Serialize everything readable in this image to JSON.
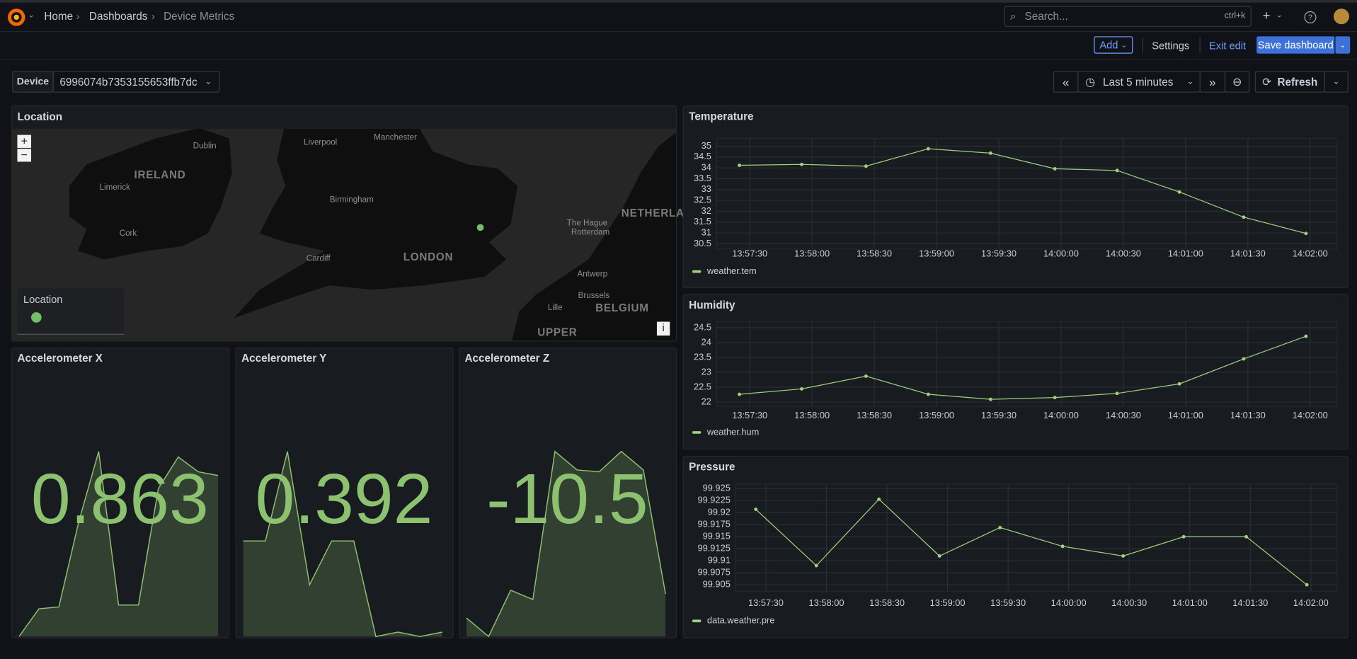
{
  "header": {
    "breadcrumbs": [
      "Home",
      "Dashboards",
      "Device Metrics"
    ],
    "search_placeholder": "Search...",
    "shortcut": "ctrl+k"
  },
  "toolbar": {
    "add": "Add",
    "settings": "Settings",
    "exit_edit": "Exit edit",
    "save": "Save dashboard"
  },
  "variables": {
    "label": "Device",
    "value": "6996074b7353155653ffb7dc"
  },
  "time_picker": {
    "range": "Last 5 minutes",
    "refresh": "Refresh"
  },
  "map_panel": {
    "title": "Location",
    "labels": [
      "Dublin",
      "IRELAND",
      "Liverpool",
      "Manchester",
      "Limerick",
      "Birmingham",
      "Cork",
      "Cardiff",
      "LONDON",
      "The Hague",
      "Rotterdam",
      "NETHERLA",
      "Antwerp",
      "Brussels",
      "Lille",
      "BELGIUM",
      "UPPER"
    ],
    "zoom_in": "+",
    "zoom_out": "−",
    "info": "i",
    "legend_title": "Location"
  },
  "stat_panels": [
    {
      "title": "Accelerometer X",
      "value": 0.863,
      "sparkline": [
        0.2,
        0.35,
        0.36,
        0.82,
        1.2,
        0.37,
        0.37,
        1.0,
        1.17,
        1.09,
        1.07
      ]
    },
    {
      "title": "Accelerometer Y",
      "value": 0.392,
      "sparkline": [
        0.85,
        0.85,
        1.3,
        0.63,
        0.85,
        0.85,
        0.37,
        0.392,
        0.37,
        0.392
      ]
    },
    {
      "title": "Accelerometer Z",
      "value": -10.5,
      "sparkline": [
        -11.3,
        -11.4,
        -11.15,
        -11.2,
        -10.4,
        -10.5,
        -10.51,
        -10.4,
        -10.5,
        -11.17
      ]
    }
  ],
  "timeseries_panels": [
    {
      "title": "Temperature",
      "series_name": "weather.tem",
      "color": "#9fd27f",
      "x": [
        "13:57:25",
        "13:57:55",
        "13:58:26",
        "13:58:56",
        "13:59:26",
        "13:59:57",
        "14:00:27",
        "14:00:57",
        "14:01:28",
        "14:01:58"
      ],
      "values": [
        34.12,
        34.16,
        34.08,
        34.88,
        34.68,
        33.96,
        33.88,
        32.89,
        31.73,
        30.98
      ],
      "xlim": [
        "13:57:14",
        "14:02:13"
      ],
      "xticks": [
        "13:57:30",
        "13:58:00",
        "13:58:30",
        "13:59:00",
        "13:59:30",
        "14:00:00",
        "14:00:30",
        "14:01:00",
        "14:01:30",
        "14:02:00"
      ],
      "ylim": [
        30.26,
        35.36
      ],
      "yticks": [
        35,
        34.5,
        34,
        33.5,
        33,
        32.5,
        32,
        31.5,
        31,
        30.5
      ]
    },
    {
      "title": "Humidity",
      "series_name": "weather.hum",
      "color": "#9fd27f",
      "x": [
        "13:57:25",
        "13:57:55",
        "13:58:26",
        "13:58:56",
        "13:59:26",
        "13:59:57",
        "14:00:27",
        "14:00:57",
        "14:01:28",
        "14:01:58"
      ],
      "values": [
        22.26,
        22.44,
        22.87,
        22.26,
        22.09,
        22.15,
        22.29,
        22.61,
        23.45,
        24.21
      ],
      "xlim": [
        "13:57:14",
        "14:02:13"
      ],
      "xticks": [
        "13:57:30",
        "13:58:00",
        "13:58:30",
        "13:59:00",
        "13:59:30",
        "14:00:00",
        "14:00:30",
        "14:01:00",
        "14:01:30",
        "14:02:00"
      ],
      "ylim": [
        21.85,
        24.7
      ],
      "yticks": [
        24.5,
        24,
        23.5,
        23,
        22.5,
        22
      ]
    },
    {
      "title": "Pressure",
      "series_name": "data.weather.pre",
      "color": "#9fd27f",
      "x": [
        "13:57:25",
        "13:57:55",
        "13:58:26",
        "13:58:56",
        "13:59:26",
        "13:59:57",
        "14:00:27",
        "14:00:57",
        "14:01:28",
        "14:01:58"
      ],
      "values": [
        99.9207,
        99.909,
        99.9228,
        99.911,
        99.9169,
        99.913,
        99.911,
        99.915,
        99.915,
        99.905
      ],
      "xlim": [
        "13:57:15",
        "14:02:13"
      ],
      "xticks": [
        "13:57:30",
        "13:58:00",
        "13:58:30",
        "13:59:00",
        "13:59:30",
        "14:00:00",
        "14:00:30",
        "14:01:00",
        "14:01:30",
        "14:02:00"
      ],
      "ylim": [
        99.9036,
        99.9259
      ],
      "yticks": [
        99.925,
        99.9225,
        99.92,
        99.9175,
        99.915,
        99.9125,
        99.91,
        99.9075,
        99.905
      ]
    }
  ]
}
